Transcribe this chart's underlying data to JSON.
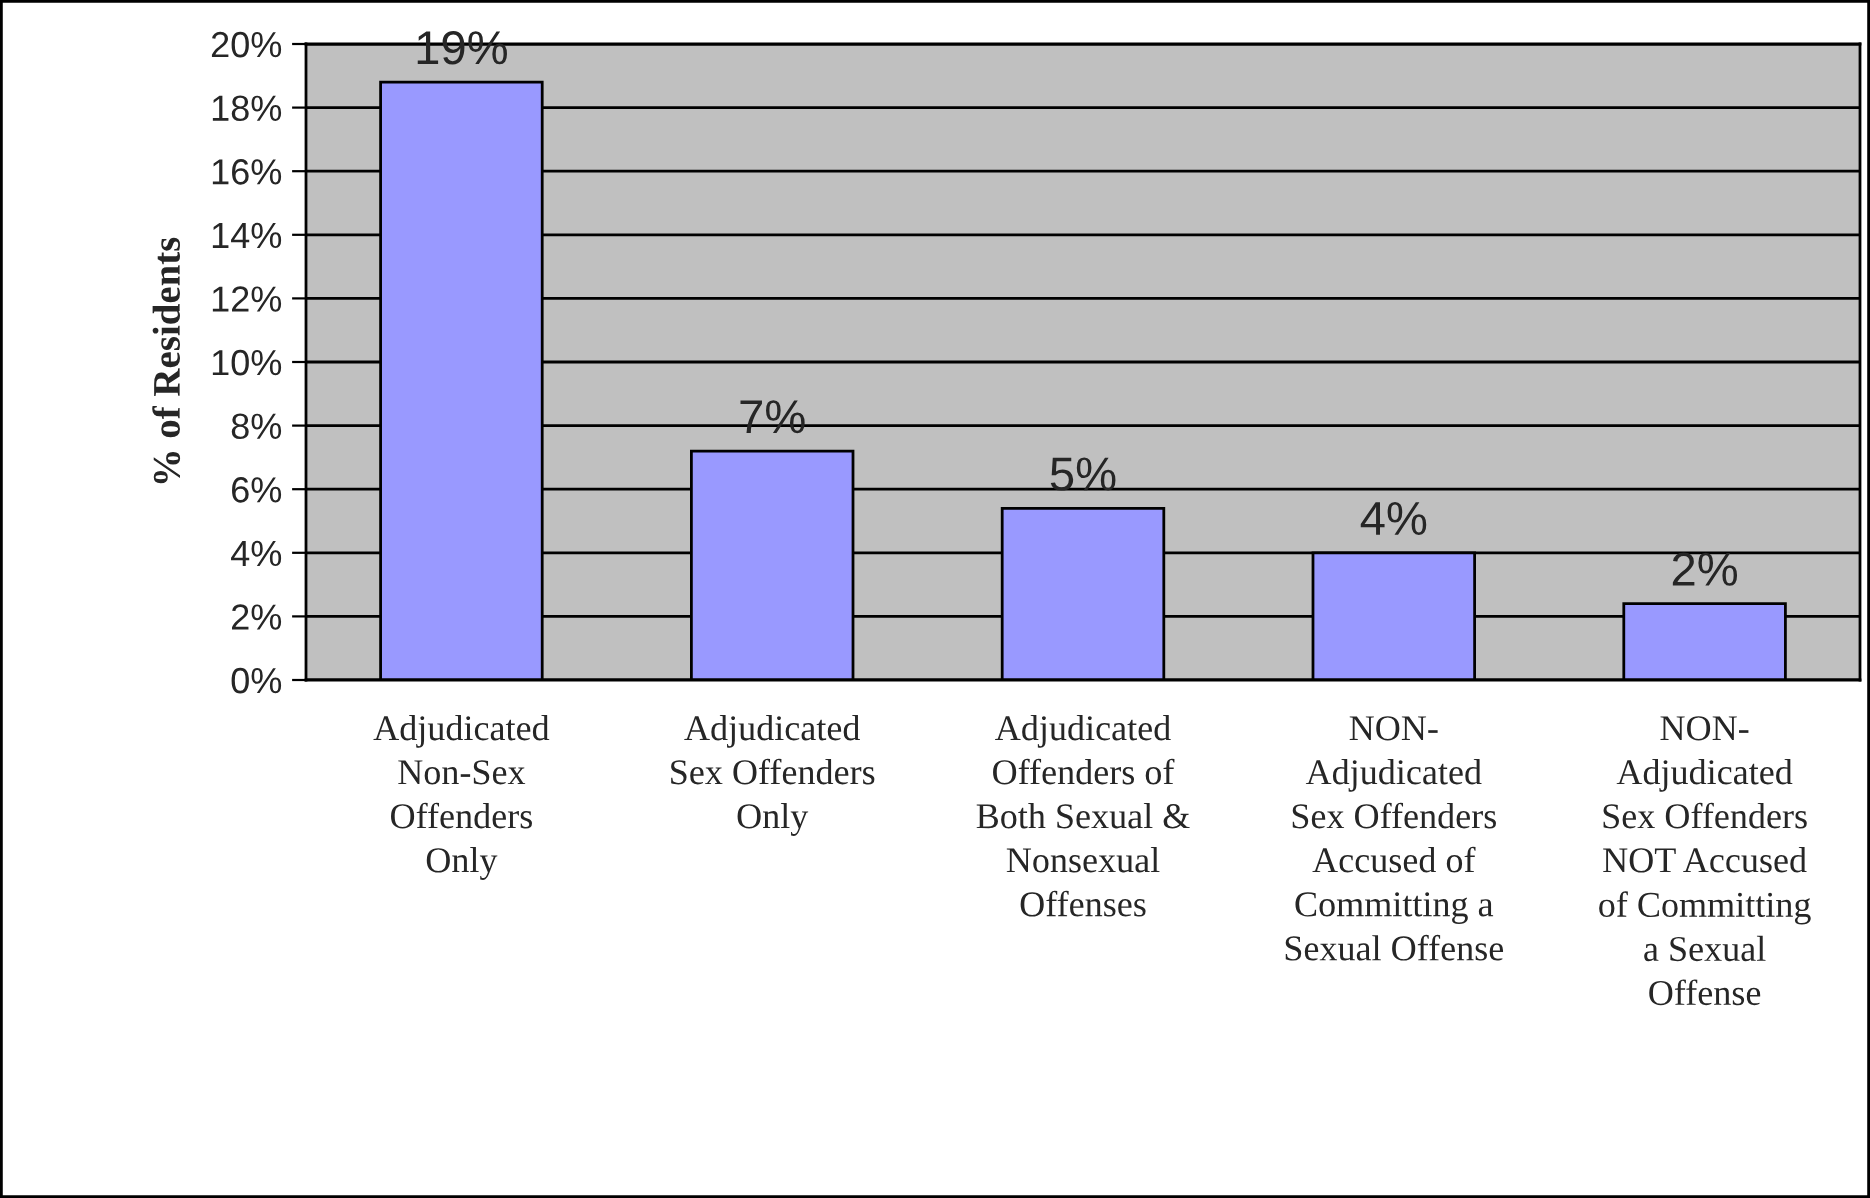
{
  "chart_data": {
    "type": "bar",
    "ylabel": "% of Residents",
    "categories": [
      "Adjudicated\nNon-Sex\nOffenders\nOnly",
      "Adjudicated\nSex Offenders\nOnly",
      "Adjudicated\nOffenders of\nBoth Sexual &\nNonsexual\nOffenses",
      "NON-\nAdjudicated\nSex Offenders\nAccused of\nCommitting a\nSexual Offense",
      "NON-\nAdjudicated\nSex Offenders\nNOT Accused\nof Committing\na Sexual\nOffense"
    ],
    "values": [
      18.8,
      7.2,
      5.4,
      4.0,
      2.4
    ],
    "value_labels": [
      "19%",
      "7%",
      "5%",
      "4%",
      "2%"
    ],
    "color": "#9999ff",
    "ylim": [
      0,
      20
    ],
    "yticks": [
      {
        "value": 0,
        "label": "0%"
      },
      {
        "value": 2,
        "label": "2%"
      },
      {
        "value": 4,
        "label": "4%"
      },
      {
        "value": 6,
        "label": "6%"
      },
      {
        "value": 8,
        "label": "8%"
      },
      {
        "value": 10,
        "label": "10%"
      },
      {
        "value": 12,
        "label": "12%"
      },
      {
        "value": 14,
        "label": "14%"
      },
      {
        "value": 16,
        "label": "16%"
      },
      {
        "value": 18,
        "label": "18%"
      },
      {
        "value": 20,
        "label": "20%"
      }
    ],
    "grid": "y"
  }
}
